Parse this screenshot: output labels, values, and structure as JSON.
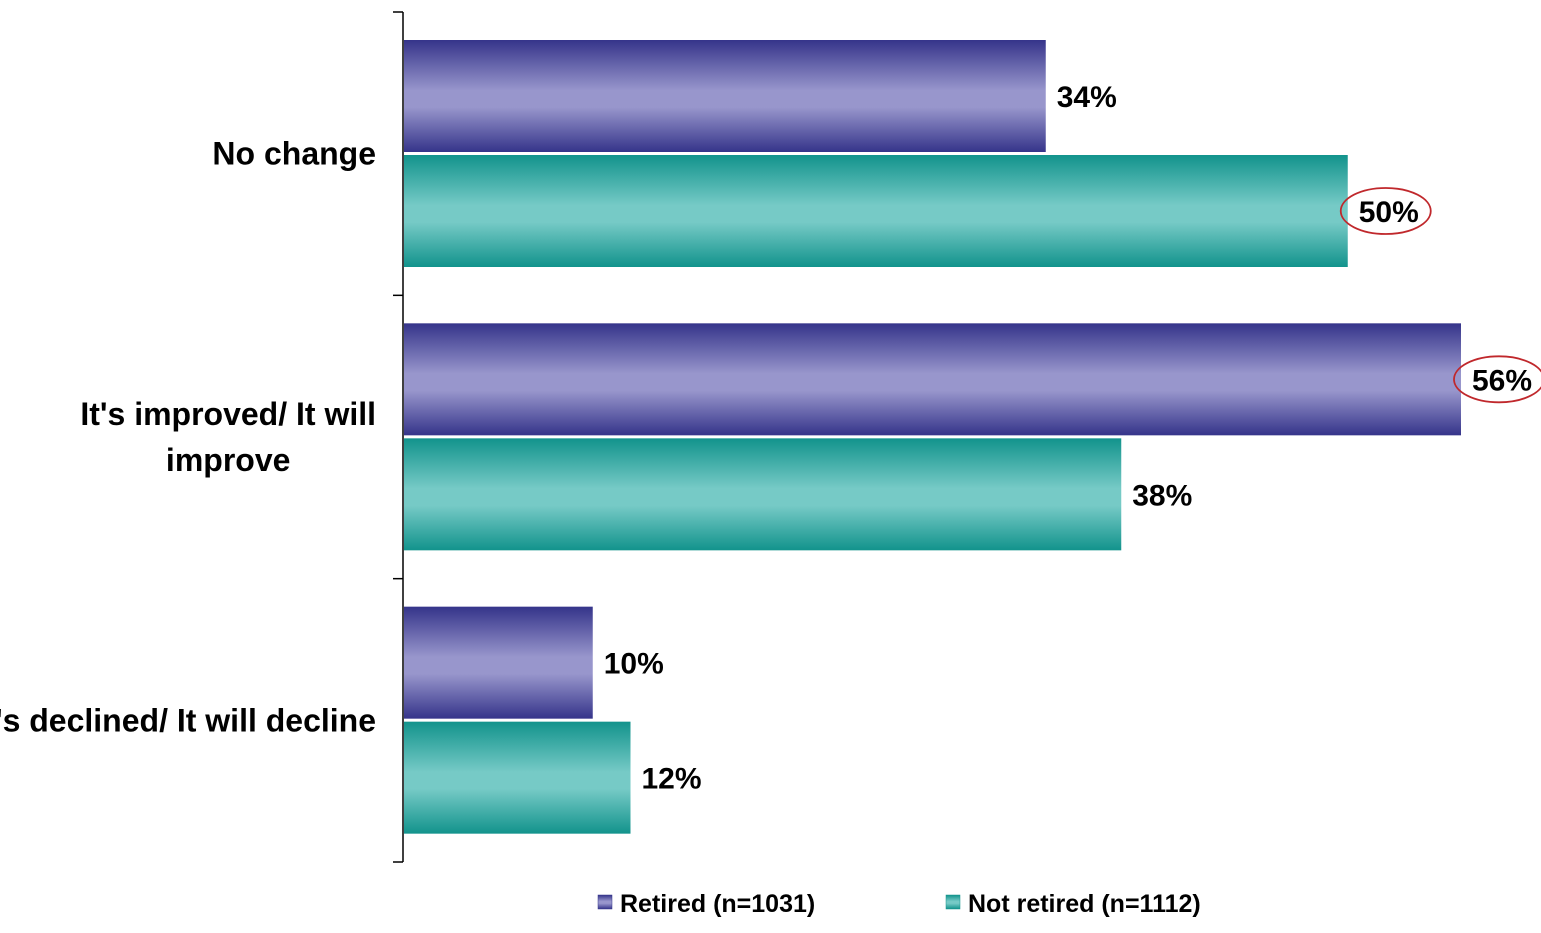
{
  "chart_data": {
    "type": "bar",
    "orientation": "horizontal",
    "categories": [
      "No change",
      "It's improved/ It will improve",
      "It's declined/ It will decline"
    ],
    "category_lines": [
      [
        "No change"
      ],
      [
        "It's improved/ It will",
        "improve"
      ],
      [
        "It's declined/ It will decline"
      ]
    ],
    "series": [
      {
        "name": "Retired (n=1031)",
        "values": [
          34,
          56,
          10
        ],
        "labels": [
          "34%",
          "56%",
          "10%"
        ],
        "color": "#4b4a9e",
        "color_light": "#9896cc",
        "color_dark": "#35348a"
      },
      {
        "name": "Not retired (n=1112)",
        "values": [
          50,
          38,
          12
        ],
        "labels": [
          "50%",
          "38%",
          "12%"
        ],
        "color": "#29a8a2",
        "color_light": "#76cac6",
        "color_dark": "#12938c"
      }
    ],
    "highlighted": [
      {
        "series": 1,
        "category": 0
      },
      {
        "series": 0,
        "category": 1
      }
    ],
    "highlight_color": "#c0282c",
    "xlim": [
      0,
      56
    ],
    "grid": false,
    "legend_position": "bottom"
  }
}
